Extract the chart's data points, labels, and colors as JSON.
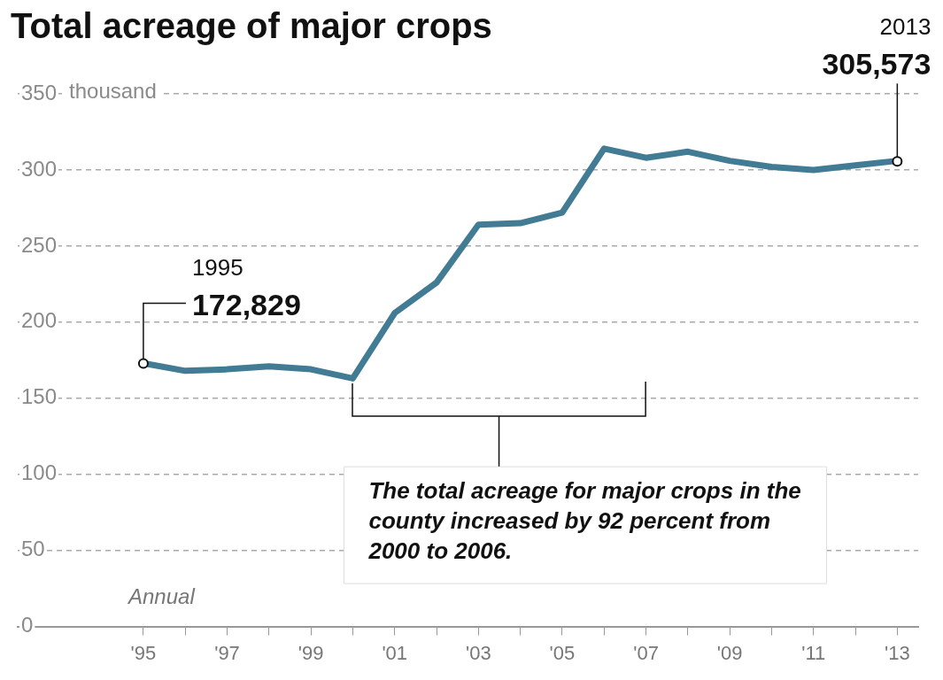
{
  "chart_data": {
    "type": "line",
    "title": "Total acreage of major crops",
    "ylabel": "thousand",
    "x": [
      1995,
      1996,
      1997,
      1998,
      1999,
      2000,
      2001,
      2002,
      2003,
      2004,
      2005,
      2006,
      2007,
      2008,
      2009,
      2010,
      2011,
      2012,
      2013
    ],
    "series": [
      {
        "color": "#427b94",
        "values": [
          173,
          168,
          169,
          171,
          169,
          163,
          206,
          226,
          264,
          265,
          272,
          314,
          308,
          312,
          306,
          302,
          300,
          303,
          306
        ]
      }
    ],
    "xlim": [
      1992,
      2013.5
    ],
    "xticks": [
      {
        "value": 1995,
        "label": "'95"
      },
      {
        "value": 1996,
        "label": null
      },
      {
        "value": 1997,
        "label": "'97"
      },
      {
        "value": 1998,
        "label": null
      },
      {
        "value": 1999,
        "label": "'99"
      },
      {
        "value": 2000,
        "label": null
      },
      {
        "value": 2001,
        "label": "'01"
      },
      {
        "value": 2002,
        "label": null
      },
      {
        "value": 2003,
        "label": "'03"
      },
      {
        "value": 2004,
        "label": null
      },
      {
        "value": 2005,
        "label": "'05"
      },
      {
        "value": 2006,
        "label": null
      },
      {
        "value": 2007,
        "label": "'07"
      },
      {
        "value": 2008,
        "label": null
      },
      {
        "value": 2009,
        "label": "'09"
      },
      {
        "value": 2010,
        "label": null
      },
      {
        "value": 2011,
        "label": "'11"
      },
      {
        "value": 2012,
        "label": null
      },
      {
        "value": 2013,
        "label": "'13"
      }
    ],
    "ylim": [
      0,
      350
    ],
    "yticks": [
      0,
      50,
      100,
      150,
      200,
      250,
      300,
      350
    ],
    "grid": "y",
    "marker": "none",
    "line_style": "solid",
    "legend": false,
    "annotations": [
      "1995",
      {
        "text": "172,829",
        "x": 1995,
        "y": 172.829
      },
      "2013",
      {
        "text": "305,573",
        "x": 2013,
        "y": 305.573
      },
      "The total acreage for major crops in the county increased by 92 percent from 2000 to 2006.",
      "Annual"
    ]
  }
}
